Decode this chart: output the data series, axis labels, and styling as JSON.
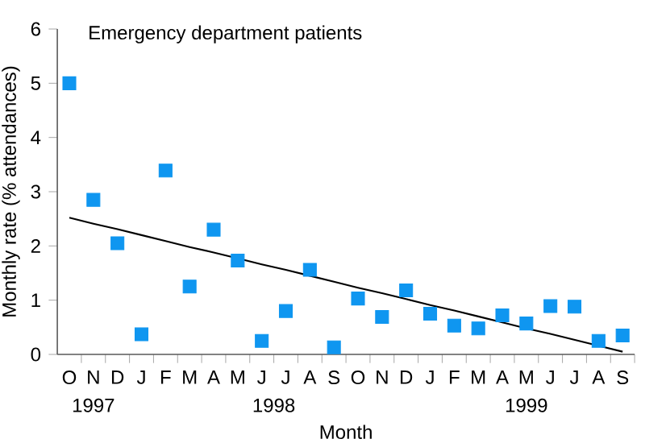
{
  "chart_data": {
    "type": "scatter",
    "title": "Emergency department patients",
    "xlabel": "Month",
    "ylabel": "Monthly rate (% attendances)",
    "categories": [
      "O",
      "N",
      "D",
      "J",
      "F",
      "M",
      "A",
      "M",
      "J",
      "J",
      "A",
      "S",
      "O",
      "N",
      "D",
      "J",
      "F",
      "M",
      "A",
      "M",
      "J",
      "J",
      "A",
      "S"
    ],
    "series": [
      {
        "color": "#0f96f0",
        "marker": "square",
        "values": [
          5.0,
          2.85,
          2.05,
          0.37,
          3.39,
          1.25,
          2.3,
          1.73,
          0.25,
          0.8,
          1.56,
          0.13,
          1.03,
          0.69,
          1.18,
          0.75,
          0.53,
          0.48,
          0.72,
          0.57,
          0.89,
          0.88,
          0.25,
          0.35
        ]
      },
      {
        "type": "line",
        "color": "#000000",
        "values": [
          2.52,
          2.41,
          2.31,
          2.2,
          2.09,
          1.98,
          1.88,
          1.77,
          1.66,
          1.56,
          1.45,
          1.34,
          1.23,
          1.13,
          1.02,
          0.91,
          0.81,
          0.7,
          0.59,
          0.48,
          0.38,
          0.27,
          0.16,
          0.05
        ]
      }
    ],
    "ylim": [
      0,
      6
    ],
    "yticks": [
      0,
      1,
      2,
      3,
      4,
      5,
      6
    ],
    "grid": false,
    "annotations": [
      "1997",
      "1998",
      "1999"
    ]
  }
}
